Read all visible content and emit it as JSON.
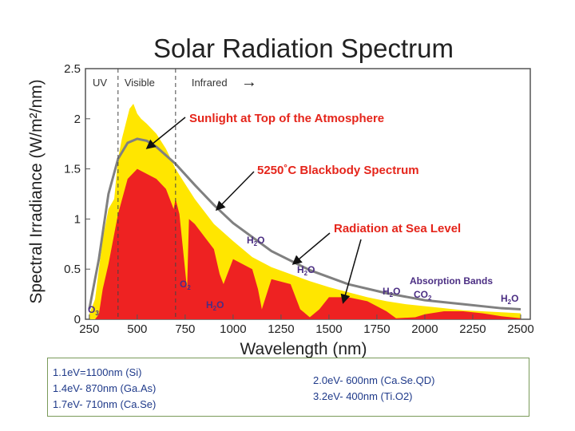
{
  "chart_data": {
    "type": "area",
    "title": "Solar Radiation Spectrum",
    "xlabel": "Wavelength (nm)",
    "ylabel": "Spectral Irradiance (W/m²/nm)",
    "xlim": [
      230,
      2550
    ],
    "ylim": [
      0,
      2.5
    ],
    "x_ticks": [
      250,
      500,
      750,
      1000,
      1250,
      1500,
      1750,
      2000,
      2250,
      2500
    ],
    "y_ticks": [
      0,
      0.5,
      1,
      1.5,
      2,
      2.5
    ],
    "y_tick_labels": [
      "0",
      "0.5",
      "1",
      "1.5",
      "2",
      "2.5"
    ],
    "grid": false,
    "regions": [
      {
        "label": "UV",
        "boundary_nm": 400
      },
      {
        "label": "Visible",
        "boundary_nm": 700
      },
      {
        "label": "Infrared",
        "arrow": "→"
      }
    ],
    "series": [
      {
        "name": "Sunlight at Top of the Atmosphere",
        "color": "#ffe600",
        "x": [
          250,
          280,
          300,
          320,
          350,
          380,
          400,
          420,
          440,
          460,
          480,
          500,
          520,
          550,
          600,
          650,
          700,
          750,
          800,
          900,
          1000,
          1100,
          1200,
          1300,
          1400,
          1500,
          1600,
          1700,
          1800,
          1900,
          2000,
          2100,
          2200,
          2300,
          2400,
          2500
        ],
        "values": [
          0.05,
          0.2,
          0.5,
          0.8,
          1.1,
          1.2,
          1.6,
          1.8,
          1.95,
          2.1,
          2.15,
          2.05,
          2.0,
          1.95,
          1.85,
          1.7,
          1.5,
          1.35,
          1.2,
          0.95,
          0.78,
          0.62,
          0.52,
          0.45,
          0.38,
          0.32,
          0.27,
          0.22,
          0.18,
          0.15,
          0.13,
          0.11,
          0.09,
          0.08,
          0.07,
          0.06
        ]
      },
      {
        "name": "5250˚C Blackbody Spectrum",
        "color": "#808080",
        "x": [
          250,
          300,
          350,
          400,
          450,
          500,
          550,
          600,
          700,
          800,
          900,
          1000,
          1200,
          1400,
          1600,
          1800,
          2000,
          2200,
          2400,
          2500
        ],
        "values": [
          0.1,
          0.6,
          1.25,
          1.6,
          1.76,
          1.8,
          1.78,
          1.72,
          1.55,
          1.34,
          1.14,
          0.96,
          0.68,
          0.49,
          0.35,
          0.26,
          0.19,
          0.15,
          0.11,
          0.1
        ]
      },
      {
        "name": "Radiation at Sea Level",
        "color": "#ee2222",
        "x": [
          280,
          300,
          320,
          350,
          400,
          450,
          500,
          550,
          600,
          650,
          690,
          700,
          720,
          760,
          770,
          800,
          900,
          930,
          950,
          1000,
          1100,
          1130,
          1150,
          1200,
          1300,
          1350,
          1400,
          1450,
          1500,
          1600,
          1700,
          1800,
          1850,
          1950,
          2000,
          2100,
          2200,
          2300,
          2400,
          2500
        ],
        "values": [
          0,
          0.05,
          0.3,
          0.55,
          1.05,
          1.4,
          1.5,
          1.45,
          1.4,
          1.3,
          1.1,
          1.2,
          1.05,
          0.3,
          1.0,
          0.95,
          0.7,
          0.45,
          0.35,
          0.6,
          0.5,
          0.3,
          0.1,
          0.4,
          0.35,
          0.1,
          0.02,
          0.1,
          0.22,
          0.22,
          0.18,
          0.08,
          0.01,
          0.02,
          0.05,
          0.08,
          0.08,
          0.06,
          0.03,
          0.01
        ]
      }
    ],
    "annotations": [
      {
        "text": "Sunlight at Top of the Atmosphere",
        "color": "#e5251b"
      },
      {
        "text": "5250˚C Blackbody Spectrum",
        "color": "#e5251b"
      },
      {
        "text": "Radiation at Sea Level",
        "color": "#e5251b"
      },
      {
        "text": "Absorption Bands",
        "color": "#4b2e83"
      }
    ],
    "absorption_labels": [
      {
        "main": "O",
        "sub": "3",
        "x_nm": 250
      },
      {
        "main": "O",
        "sub": "2",
        "x_nm": 770
      },
      {
        "main": "H",
        "sub": "2",
        "tail": "O",
        "x_nm": 900
      },
      {
        "main": "H",
        "sub": "2",
        "tail": "O",
        "x_nm": 1100
      },
      {
        "main": "H",
        "sub": "2",
        "tail": "O",
        "x_nm": 1400
      },
      {
        "main": "H",
        "sub": "2",
        "tail": "O",
        "x_nm": 1900
      },
      {
        "main": "CO",
        "sub": "2",
        "x_nm": 2050
      },
      {
        "main": "H",
        "sub": "2",
        "tail": "O",
        "x_nm": 2500
      }
    ]
  },
  "notes": {
    "left": [
      "1.1eV=1100nm (Si)",
      "1.4eV-  870nm (Ga.As)",
      "1.7eV- 710nm (Ca.Se)"
    ],
    "right": [
      "2.0eV- 600nm (Ca.Se.QD)",
      "3.2eV- 400nm (Ti.O2)"
    ]
  }
}
